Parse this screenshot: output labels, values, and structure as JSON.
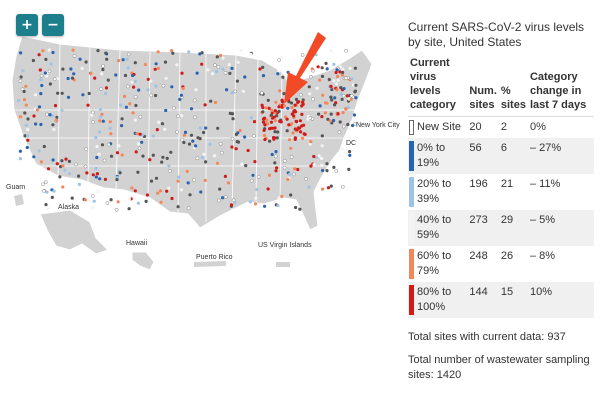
{
  "map": {
    "zoom_in_label": "+",
    "zoom_out_label": "−",
    "labels": {
      "guam": "Guam",
      "alaska": "Alaska",
      "hawaii": "Hawaii",
      "puerto_rico": "Puerto Rico",
      "us_virgin_islands": "US Virgin Islands",
      "new_york_city": "New York City",
      "dc": "DC"
    },
    "colors": {
      "land": "#d2d2d2",
      "border": "#ffffff",
      "arrow": "#f24a26",
      "new_site": "#ffffff",
      "dark_point": "#555555"
    }
  },
  "legend": {
    "title": "Current SARS-CoV-2 virus levels by site, United States",
    "headers": {
      "category": "Current virus levels category",
      "num_sites": "Num. sites",
      "pct_sites": "% sites",
      "change": "Category change in last 7 days"
    },
    "rows": [
      {
        "category": "New Site",
        "num": "20",
        "pct": "2",
        "change": "0%",
        "color": "#ffffff"
      },
      {
        "category": "0% to 19%",
        "num": "56",
        "pct": "6",
        "change": "– 27%",
        "color": "#2a64b0"
      },
      {
        "category": "20% to 39%",
        "num": "196",
        "pct": "21",
        "change": "– 11%",
        "color": "#9dc3e6"
      },
      {
        "category": "40% to 59%",
        "num": "273",
        "pct": "29",
        "change": "– 5%",
        "color": "#f4f4f4"
      },
      {
        "category": "60% to 79%",
        "num": "248",
        "pct": "26",
        "change": "– 8%",
        "color": "#f4875a"
      },
      {
        "category": "80% to 100%",
        "num": "144",
        "pct": "15",
        "change": "10%",
        "color": "#d11a1a"
      }
    ],
    "total_current": "Total sites with current data: 937",
    "total_sampling": "Total number of wastewater sampling sites: 1420"
  }
}
